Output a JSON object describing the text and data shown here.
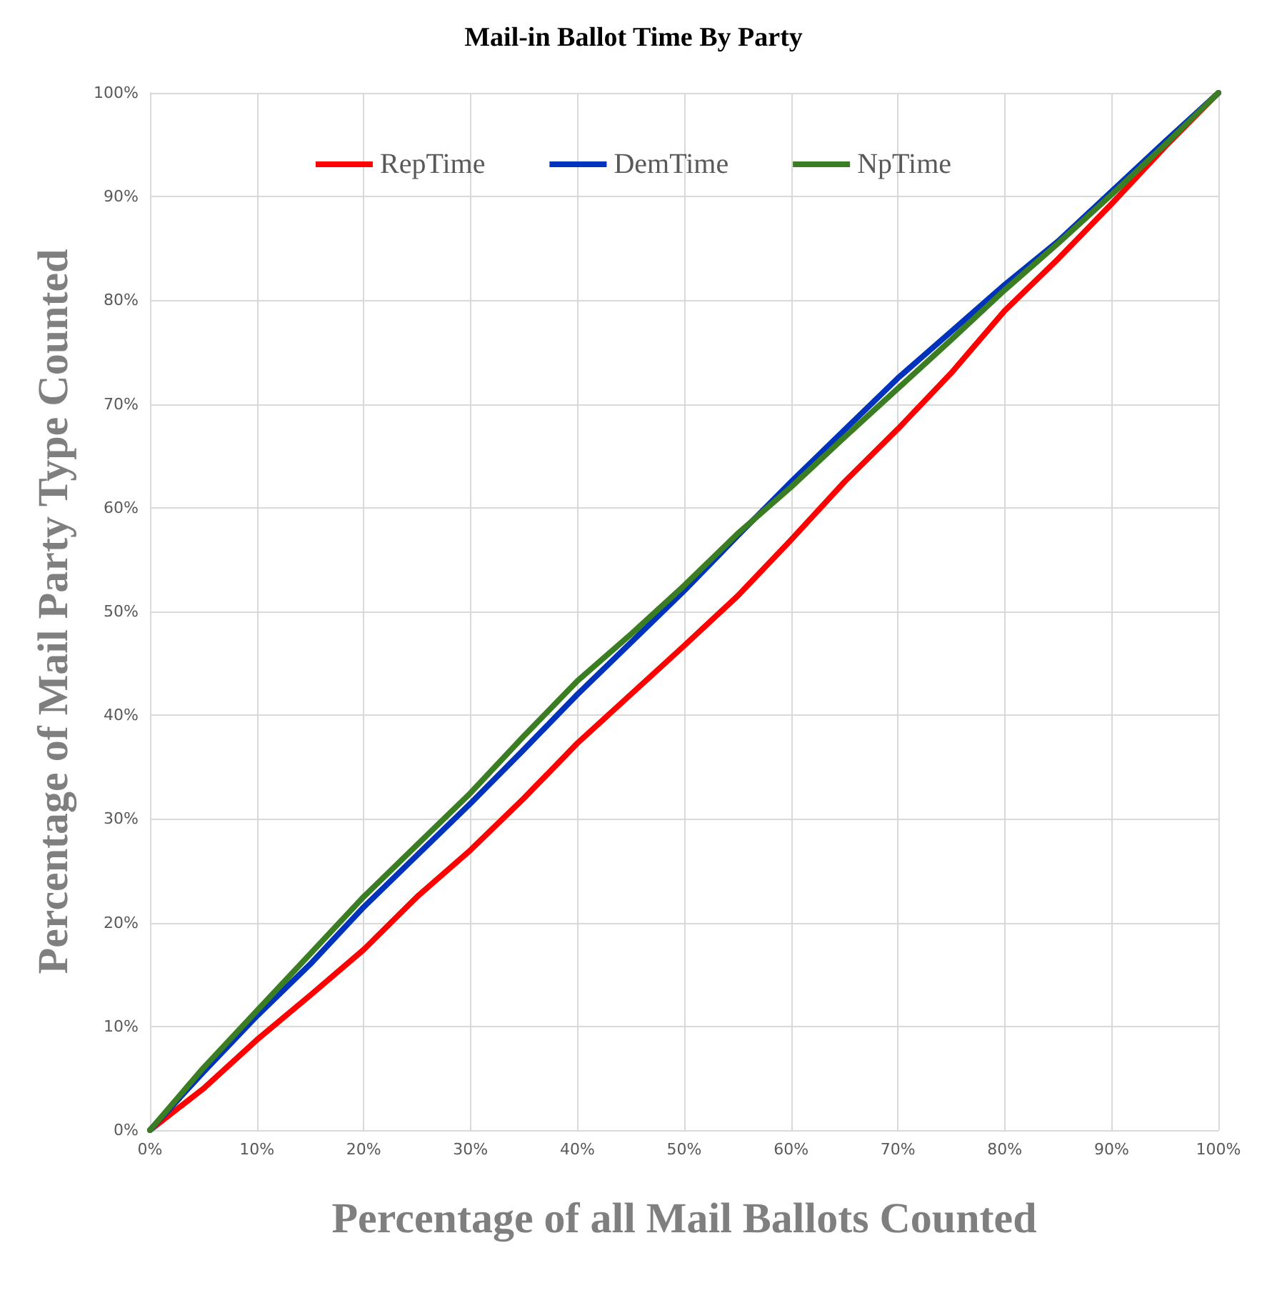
{
  "chart_data": {
    "type": "line",
    "title": "Mail-in Ballot Time By Party",
    "xlabel": "Percentage of all Mail Ballots Counted",
    "ylabel": "Percentage of Mail Party Type Counted",
    "x": [
      0,
      5,
      10,
      15,
      20,
      25,
      30,
      35,
      40,
      45,
      50,
      55,
      60,
      65,
      70,
      75,
      80,
      85,
      90,
      95,
      100
    ],
    "series": [
      {
        "name": "RepTime",
        "color": "#ff0000",
        "values": [
          0,
          4,
          8.7,
          13,
          17.4,
          22.5,
          27,
          32,
          37.3,
          42,
          46.7,
          51.5,
          56.9,
          62.5,
          67.6,
          73,
          79,
          84,
          89.3,
          94.8,
          100
        ]
      },
      {
        "name": "DemTime",
        "color": "#0033bb",
        "values": [
          0,
          5.6,
          11,
          16,
          21.5,
          26.5,
          31.5,
          36.7,
          42,
          47,
          52,
          57.3,
          62.5,
          67.5,
          72.5,
          77,
          81.5,
          85.7,
          90.5,
          95.3,
          100
        ]
      },
      {
        "name": "NpTime",
        "color": "#3a7d22",
        "values": [
          0,
          6,
          11.5,
          17,
          22.5,
          27.5,
          32.5,
          38,
          43.3,
          47.8,
          52.5,
          57.5,
          62,
          66.8,
          71.5,
          76.2,
          81,
          85.5,
          90.2,
          95,
          100
        ]
      }
    ],
    "xlim": [
      0,
      100
    ],
    "ylim": [
      0,
      100
    ],
    "xticks": [
      {
        "value": 0,
        "label": "0%"
      },
      {
        "value": 10,
        "label": "10%"
      },
      {
        "value": 20,
        "label": "20%"
      },
      {
        "value": 30,
        "label": "30%"
      },
      {
        "value": 40,
        "label": "40%"
      },
      {
        "value": 50,
        "label": "50%"
      },
      {
        "value": 60,
        "label": "60%"
      },
      {
        "value": 70,
        "label": "70%"
      },
      {
        "value": 80,
        "label": "80%"
      },
      {
        "value": 90,
        "label": "90%"
      },
      {
        "value": 100,
        "label": "100%"
      }
    ],
    "yticks": [
      {
        "value": 0,
        "label": "0%"
      },
      {
        "value": 10,
        "label": "10%"
      },
      {
        "value": 20,
        "label": "20%"
      },
      {
        "value": 30,
        "label": "30%"
      },
      {
        "value": 40,
        "label": "40%"
      },
      {
        "value": 50,
        "label": "50%"
      },
      {
        "value": 60,
        "label": "60%"
      },
      {
        "value": 70,
        "label": "70%"
      },
      {
        "value": 80,
        "label": "80%"
      },
      {
        "value": 90,
        "label": "90%"
      },
      {
        "value": 100,
        "label": "100%"
      }
    ],
    "grid": true,
    "legend": "top",
    "marker": "none",
    "line_style": "solid"
  }
}
